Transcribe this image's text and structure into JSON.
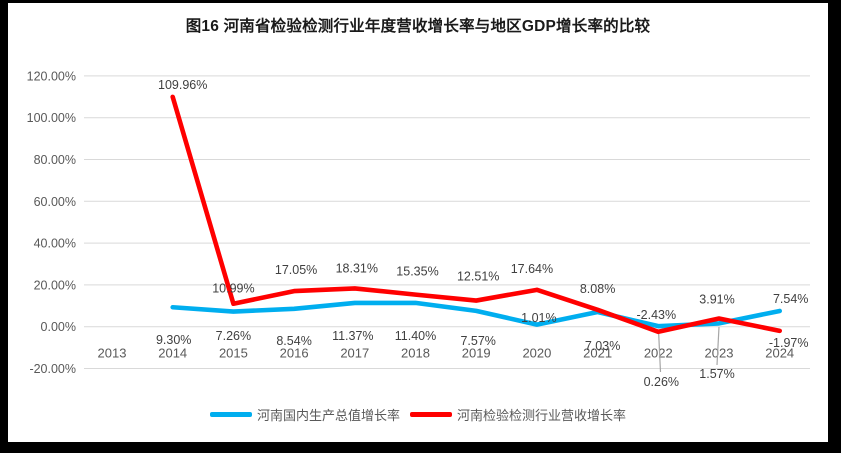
{
  "chart_data": {
    "type": "line",
    "title": "图16  河南省检验检测行业年度营收增长率与地区GDP增长率的比较",
    "categories": [
      "2013",
      "2014",
      "2015",
      "2016",
      "2017",
      "2018",
      "2019",
      "2020",
      "2021",
      "2022",
      "2023",
      "2024"
    ],
    "series": [
      {
        "name": "河南国内生产总值增长率",
        "color": "#00AEEF",
        "values": [
          null,
          9.3,
          7.26,
          8.54,
          11.37,
          11.4,
          7.57,
          1.01,
          7.03,
          0.26,
          1.57,
          7.54
        ],
        "labels": [
          null,
          "9.30%",
          "7.26%",
          "8.54%",
          "11.37%",
          "11.40%",
          "7.57%",
          "1.01%",
          "7.03%",
          "0.26%",
          "1.57%",
          "7.54%"
        ]
      },
      {
        "name": "河南检验检测行业营收增长率",
        "color": "#FF0000",
        "values": [
          null,
          109.96,
          10.99,
          17.05,
          18.31,
          15.35,
          12.51,
          17.64,
          8.08,
          -2.43,
          3.91,
          -1.97
        ],
        "labels": [
          null,
          "109.96%",
          "10.99%",
          "17.05%",
          "18.31%",
          "15.35%",
          "12.51%",
          "17.64%",
          "8.08%",
          "-2.43%",
          "3.91%",
          "-1.97%"
        ]
      }
    ],
    "y_axis": {
      "min": -20,
      "max": 120,
      "step": 20,
      "ticks": [
        {
          "label": "120.00%",
          "value": 120
        },
        {
          "label": "100.00%",
          "value": 100
        },
        {
          "label": "80.00%",
          "value": 80
        },
        {
          "label": "60.00%",
          "value": 60
        },
        {
          "label": "40.00%",
          "value": 40
        },
        {
          "label": "20.00%",
          "value": 20
        },
        {
          "label": "0.00%",
          "value": 0
        },
        {
          "label": "-20.00%",
          "value": -20
        }
      ]
    },
    "grid": true,
    "legend_position": "bottom"
  },
  "colors": {
    "frame": "#000000",
    "background": "#ffffff",
    "gridline": "#D9D9D9",
    "axis_text": "#595959",
    "data_label_text": "#404040",
    "legend_text": "#595959",
    "leader_line": "#A6A6A6",
    "gdp_series": "#00AEEF",
    "industry_series": "#FF0000"
  }
}
